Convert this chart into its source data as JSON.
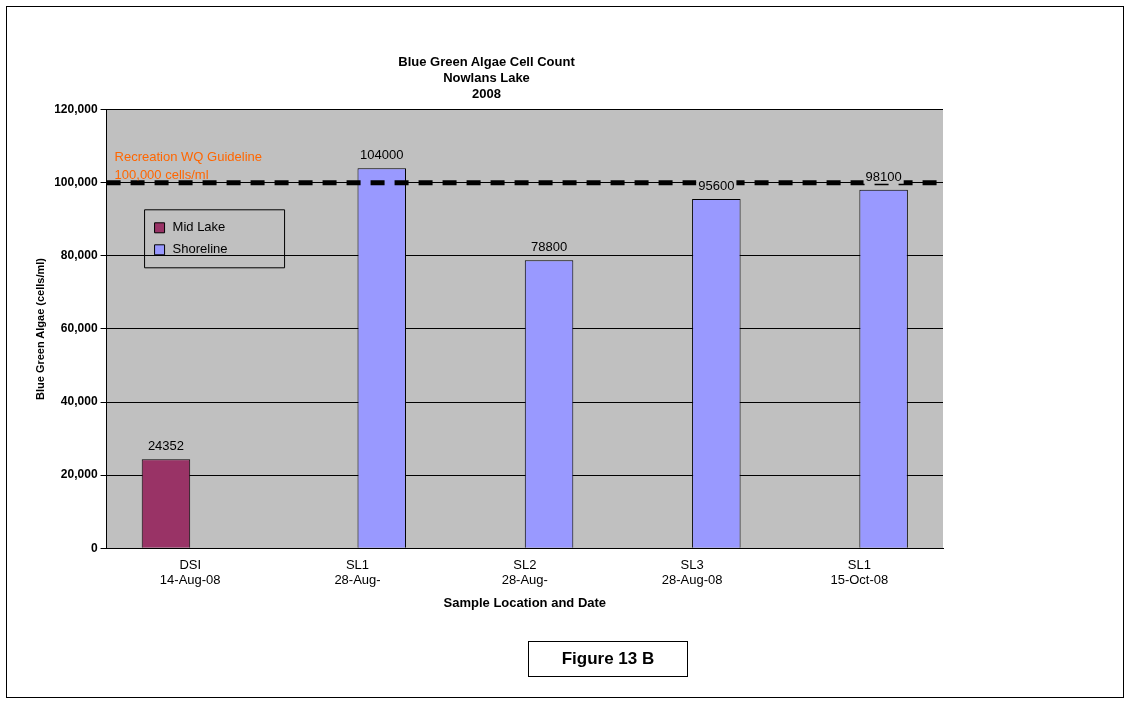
{
  "chart_data": {
    "type": "bar",
    "title": "Blue Green Algae Cell Count\nNowlans Lake\n2008",
    "xlabel": "Sample Location and Date",
    "ylabel": "Blue Green Algae (cells/ml)",
    "categories": [
      "DSI\n14-Aug-08",
      "SL1\n28-Aug-",
      "SL2\n28-Aug-",
      "SL3\n28-Aug-08",
      "SL1\n15-Oct-08"
    ],
    "series": [
      {
        "name": "Mid Lake",
        "color": "#993366",
        "values": [
          24352,
          null,
          null,
          null,
          null
        ]
      },
      {
        "name": "Shoreline",
        "color": "#9999ff",
        "values": [
          null,
          104000,
          78800,
          95600,
          98100
        ]
      }
    ],
    "ylim": [
      0,
      120000
    ],
    "yticks": [
      0,
      {
        "value": 20000,
        "label": "20,000"
      },
      {
        "value": 40000,
        "label": "40,000"
      },
      {
        "value": 60000,
        "label": "60,000"
      },
      {
        "value": 80000,
        "label": "80,000"
      },
      {
        "value": 100000,
        "label": "100,000"
      },
      {
        "value": 120000,
        "label": "120,000"
      }
    ],
    "grid": "y",
    "legend": "top left",
    "data_labels": true,
    "ref_lines": [
      {
        "axis": "y",
        "value": 100000,
        "label": "Recreation WQ Guideline\n100,000 cells/ml",
        "color": "#000000",
        "line_style": "dashed"
      }
    ],
    "annotations": [
      "Figure 13 B"
    ]
  }
}
